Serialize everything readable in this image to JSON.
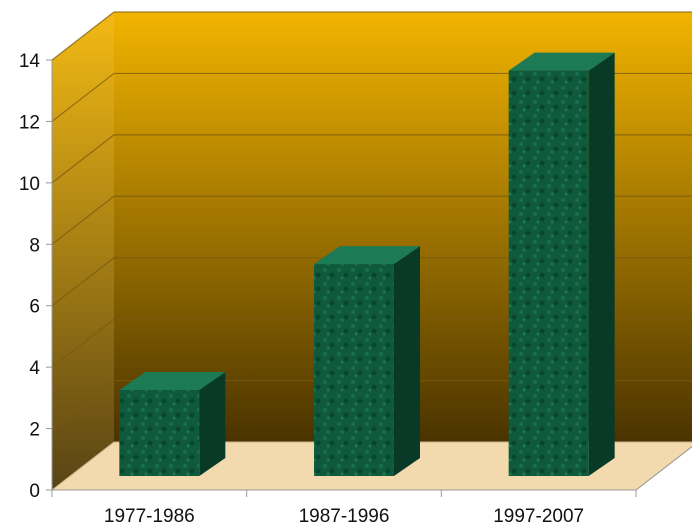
{
  "chart_data": {
    "type": "bar",
    "title": "",
    "xlabel": "",
    "ylabel": "",
    "categories": [
      "1977-1986",
      "1987-1996",
      "1997-2007"
    ],
    "values": [
      2.8,
      6.9,
      13.2
    ],
    "ylim": [
      0,
      14
    ],
    "yticks": [
      "0",
      "2",
      "4",
      "6",
      "8",
      "10",
      "12",
      "14"
    ],
    "grid": true,
    "legend": "none",
    "three_d": true
  },
  "colors": {
    "wall_top": "#f2b400",
    "wall_bottom": "#4a3300",
    "floor": "#f2d9ae",
    "bar_front": "#0f5a3d",
    "bar_side": "#093a27",
    "bar_top": "#1c7a55",
    "gridline": "#7a5a10"
  }
}
